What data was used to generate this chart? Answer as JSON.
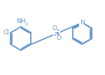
{
  "bg_color": "#ffffff",
  "line_color": "#6699cc",
  "text_color": "#6699cc",
  "line_width": 1.3,
  "font_size": 6.5,
  "figsize": [
    1.5,
    1.07
  ],
  "dpi": 100,
  "xlim": [
    0.0,
    10.2
  ],
  "ylim": [
    1.2,
    7.0
  ]
}
